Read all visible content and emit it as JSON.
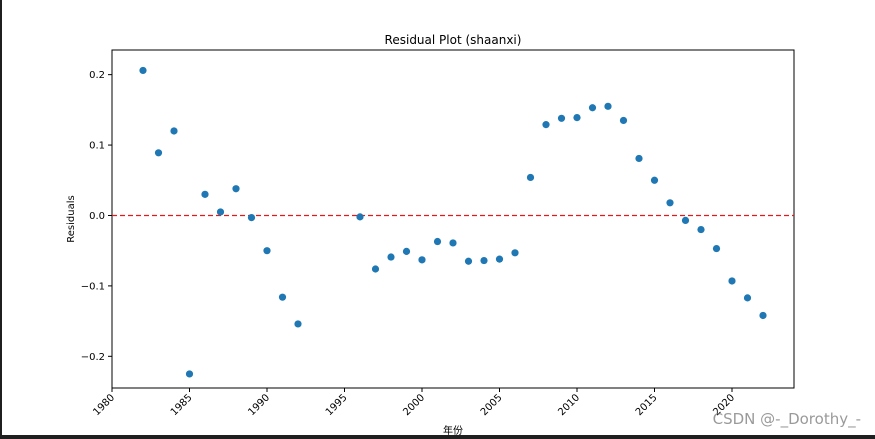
{
  "chart_data": {
    "type": "scatter",
    "title": "Residual Plot (shaanxi)",
    "xlabel": "年份",
    "ylabel": "Residuals",
    "xlim": [
      1980,
      2024
    ],
    "ylim": [
      -0.245,
      0.235
    ],
    "xticks": [
      "1980",
      "1985",
      "1990",
      "1995",
      "2000",
      "2005",
      "2010",
      "2015",
      "2020"
    ],
    "yticks": [
      "−0.2",
      "−0.1",
      "0.0",
      "0.1",
      "0.2"
    ],
    "reference_line": {
      "y": 0.0,
      "style": "dashed",
      "color": "#e31a1c"
    },
    "marker_color": "#1f77b4",
    "grid": false,
    "points": [
      {
        "x": 1982,
        "y": 0.206
      },
      {
        "x": 1983,
        "y": 0.089
      },
      {
        "x": 1984,
        "y": 0.12
      },
      {
        "x": 1985,
        "y": -0.225
      },
      {
        "x": 1986,
        "y": 0.03
      },
      {
        "x": 1987,
        "y": 0.005
      },
      {
        "x": 1988,
        "y": 0.038
      },
      {
        "x": 1989,
        "y": -0.003
      },
      {
        "x": 1990,
        "y": -0.05
      },
      {
        "x": 1991,
        "y": -0.116
      },
      {
        "x": 1992,
        "y": -0.154
      },
      {
        "x": 1996,
        "y": -0.002
      },
      {
        "x": 1997,
        "y": -0.076
      },
      {
        "x": 1998,
        "y": -0.059
      },
      {
        "x": 1999,
        "y": -0.051
      },
      {
        "x": 2000,
        "y": -0.063
      },
      {
        "x": 2001,
        "y": -0.037
      },
      {
        "x": 2002,
        "y": -0.039
      },
      {
        "x": 2003,
        "y": -0.065
      },
      {
        "x": 2004,
        "y": -0.064
      },
      {
        "x": 2005,
        "y": -0.062
      },
      {
        "x": 2006,
        "y": -0.053
      },
      {
        "x": 2007,
        "y": 0.054
      },
      {
        "x": 2008,
        "y": 0.129
      },
      {
        "x": 2009,
        "y": 0.138
      },
      {
        "x": 2010,
        "y": 0.139
      },
      {
        "x": 2011,
        "y": 0.153
      },
      {
        "x": 2012,
        "y": 0.155
      },
      {
        "x": 2013,
        "y": 0.135
      },
      {
        "x": 2014,
        "y": 0.081
      },
      {
        "x": 2015,
        "y": 0.05
      },
      {
        "x": 2016,
        "y": 0.018
      },
      {
        "x": 2017,
        "y": -0.007
      },
      {
        "x": 2018,
        "y": -0.02
      },
      {
        "x": 2019,
        "y": -0.047
      },
      {
        "x": 2020,
        "y": -0.093
      },
      {
        "x": 2021,
        "y": -0.117
      },
      {
        "x": 2022,
        "y": -0.142
      }
    ]
  },
  "watermark": "CSDN @-_Dorothy_-"
}
